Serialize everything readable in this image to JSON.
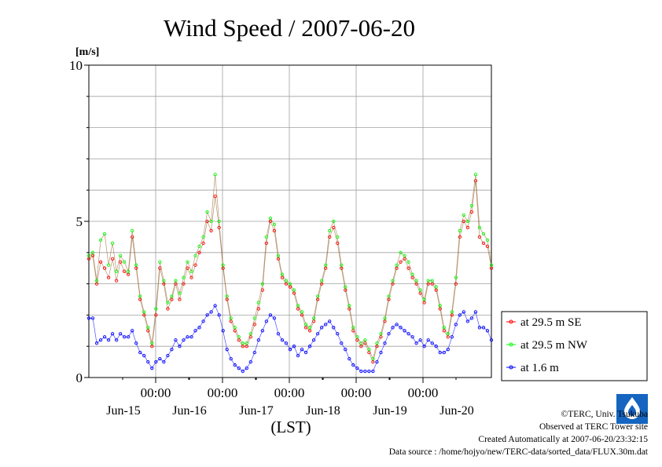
{
  "chart_data": {
    "type": "line",
    "title": "Wind Speed / 2007-06-20",
    "ylabel": "[m/s]",
    "xlabel": "(LST)",
    "ylim": [
      0,
      10
    ],
    "yticks": [
      "0",
      "5",
      "10"
    ],
    "x_ticks_time": [
      "00:00",
      "00:00",
      "00:00",
      "00:00",
      "00:00"
    ],
    "x_ticks_date": [
      "Jun-15",
      "Jun-16",
      "Jun-17",
      "Jun-18",
      "Jun-19",
      "Jun-20"
    ],
    "legend_position": "right",
    "grid": true,
    "series": [
      {
        "name": "at 29.5 m SE",
        "color": "#ff0000",
        "keypoints": [
          [
            0,
            3.8
          ],
          [
            2,
            3.9
          ],
          [
            4,
            3.0
          ],
          [
            6,
            3.7
          ],
          [
            8,
            3.5
          ],
          [
            10,
            3.2
          ],
          [
            12,
            3.8
          ],
          [
            14,
            3.1
          ],
          [
            16,
            3.7
          ],
          [
            18,
            3.4
          ],
          [
            20,
            3.3
          ],
          [
            22,
            4.5
          ],
          [
            24,
            3.5
          ],
          [
            26,
            2.5
          ],
          [
            28,
            2.0
          ],
          [
            30,
            1.5
          ],
          [
            32,
            1.0
          ],
          [
            34,
            2.0
          ],
          [
            36,
            3.5
          ],
          [
            38,
            3.0
          ],
          [
            40,
            2.2
          ],
          [
            42,
            2.5
          ],
          [
            44,
            3.0
          ],
          [
            46,
            2.5
          ],
          [
            48,
            3.0
          ],
          [
            50,
            3.5
          ],
          [
            52,
            3.2
          ],
          [
            54,
            3.6
          ],
          [
            56,
            4.0
          ],
          [
            58,
            4.3
          ],
          [
            60,
            5.0
          ],
          [
            62,
            4.7
          ],
          [
            64,
            5.8
          ],
          [
            66,
            4.8
          ],
          [
            68,
            3.5
          ],
          [
            70,
            2.5
          ],
          [
            72,
            1.8
          ],
          [
            74,
            1.5
          ],
          [
            76,
            1.2
          ],
          [
            78,
            1.0
          ],
          [
            80,
            1.0
          ],
          [
            82,
            1.3
          ],
          [
            84,
            1.7
          ],
          [
            86,
            2.2
          ],
          [
            88,
            2.8
          ],
          [
            90,
            4.3
          ],
          [
            92,
            5.0
          ],
          [
            94,
            4.7
          ],
          [
            96,
            3.8
          ],
          [
            98,
            3.2
          ],
          [
            100,
            3.0
          ],
          [
            102,
            2.9
          ],
          [
            104,
            2.7
          ],
          [
            106,
            2.2
          ],
          [
            108,
            2.0
          ],
          [
            110,
            1.6
          ],
          [
            112,
            1.5
          ],
          [
            114,
            1.8
          ],
          [
            116,
            2.5
          ],
          [
            118,
            3.0
          ],
          [
            120,
            3.5
          ],
          [
            122,
            4.5
          ],
          [
            124,
            4.8
          ],
          [
            126,
            4.3
          ],
          [
            128,
            3.5
          ],
          [
            130,
            2.8
          ],
          [
            132,
            2.2
          ],
          [
            134,
            1.5
          ],
          [
            136,
            1.2
          ],
          [
            138,
            1.0
          ],
          [
            140,
            1.1
          ],
          [
            142,
            0.8
          ],
          [
            144,
            0.5
          ],
          [
            146,
            1.0
          ],
          [
            148,
            1.3
          ],
          [
            150,
            1.8
          ],
          [
            152,
            2.5
          ],
          [
            154,
            3.0
          ],
          [
            156,
            3.5
          ],
          [
            158,
            3.7
          ],
          [
            160,
            3.8
          ],
          [
            162,
            3.5
          ],
          [
            164,
            3.2
          ],
          [
            166,
            3.0
          ],
          [
            168,
            2.7
          ],
          [
            170,
            2.4
          ],
          [
            172,
            3.0
          ],
          [
            174,
            3.0
          ],
          [
            176,
            2.8
          ],
          [
            178,
            2.2
          ],
          [
            180,
            1.5
          ],
          [
            182,
            1.3
          ],
          [
            184,
            2.0
          ],
          [
            186,
            3.0
          ],
          [
            188,
            4.5
          ],
          [
            190,
            5.0
          ],
          [
            192,
            4.8
          ],
          [
            194,
            5.3
          ],
          [
            196,
            6.3
          ],
          [
            198,
            4.5
          ],
          [
            200,
            4.3
          ],
          [
            202,
            4.2
          ],
          [
            204,
            3.5
          ]
        ]
      },
      {
        "name": "at 29.5 m NW",
        "color": "#00ff00",
        "keypoints": [
          [
            0,
            3.9
          ],
          [
            2,
            4.0
          ],
          [
            4,
            3.1
          ],
          [
            6,
            4.4
          ],
          [
            8,
            4.6
          ],
          [
            10,
            3.6
          ],
          [
            12,
            4.3
          ],
          [
            14,
            3.4
          ],
          [
            16,
            3.9
          ],
          [
            18,
            3.7
          ],
          [
            20,
            3.4
          ],
          [
            22,
            4.7
          ],
          [
            24,
            3.6
          ],
          [
            26,
            2.6
          ],
          [
            28,
            2.1
          ],
          [
            30,
            1.6
          ],
          [
            32,
            1.1
          ],
          [
            34,
            2.2
          ],
          [
            36,
            3.7
          ],
          [
            38,
            3.1
          ],
          [
            40,
            2.4
          ],
          [
            42,
            2.6
          ],
          [
            44,
            3.1
          ],
          [
            46,
            2.7
          ],
          [
            48,
            3.2
          ],
          [
            50,
            3.7
          ],
          [
            52,
            3.4
          ],
          [
            54,
            3.9
          ],
          [
            56,
            4.2
          ],
          [
            58,
            4.5
          ],
          [
            60,
            5.3
          ],
          [
            62,
            5.0
          ],
          [
            64,
            6.5
          ],
          [
            66,
            5.0
          ],
          [
            68,
            3.6
          ],
          [
            70,
            2.6
          ],
          [
            72,
            1.9
          ],
          [
            74,
            1.6
          ],
          [
            76,
            1.3
          ],
          [
            78,
            1.1
          ],
          [
            80,
            1.1
          ],
          [
            82,
            1.4
          ],
          [
            84,
            1.9
          ],
          [
            86,
            2.4
          ],
          [
            88,
            3.0
          ],
          [
            90,
            4.5
          ],
          [
            92,
            5.1
          ],
          [
            94,
            4.9
          ],
          [
            96,
            3.9
          ],
          [
            98,
            3.3
          ],
          [
            100,
            3.1
          ],
          [
            102,
            3.0
          ],
          [
            104,
            2.8
          ],
          [
            106,
            2.3
          ],
          [
            108,
            2.1
          ],
          [
            110,
            1.7
          ],
          [
            112,
            1.6
          ],
          [
            114,
            1.9
          ],
          [
            116,
            2.6
          ],
          [
            118,
            3.1
          ],
          [
            120,
            3.6
          ],
          [
            122,
            4.7
          ],
          [
            124,
            5.0
          ],
          [
            126,
            4.5
          ],
          [
            128,
            3.6
          ],
          [
            130,
            2.9
          ],
          [
            132,
            2.3
          ],
          [
            134,
            1.6
          ],
          [
            136,
            1.3
          ],
          [
            138,
            1.1
          ],
          [
            140,
            1.2
          ],
          [
            142,
            0.9
          ],
          [
            144,
            0.6
          ],
          [
            146,
            1.1
          ],
          [
            148,
            1.4
          ],
          [
            150,
            1.9
          ],
          [
            152,
            2.6
          ],
          [
            154,
            3.1
          ],
          [
            156,
            3.6
          ],
          [
            158,
            4.0
          ],
          [
            160,
            3.9
          ],
          [
            162,
            3.7
          ],
          [
            164,
            3.3
          ],
          [
            166,
            3.1
          ],
          [
            168,
            2.8
          ],
          [
            170,
            2.5
          ],
          [
            172,
            3.1
          ],
          [
            174,
            3.1
          ],
          [
            176,
            2.9
          ],
          [
            178,
            2.3
          ],
          [
            180,
            1.6
          ],
          [
            182,
            1.4
          ],
          [
            184,
            2.1
          ],
          [
            186,
            3.2
          ],
          [
            188,
            4.7
          ],
          [
            190,
            5.2
          ],
          [
            192,
            5.0
          ],
          [
            194,
            5.5
          ],
          [
            196,
            6.5
          ],
          [
            198,
            4.8
          ],
          [
            200,
            4.6
          ],
          [
            202,
            4.4
          ],
          [
            204,
            3.6
          ]
        ]
      },
      {
        "name": "at 1.6 m",
        "color": "#0000ff",
        "keypoints": [
          [
            0,
            1.9
          ],
          [
            2,
            1.9
          ],
          [
            4,
            1.1
          ],
          [
            6,
            1.2
          ],
          [
            8,
            1.3
          ],
          [
            10,
            1.2
          ],
          [
            12,
            1.4
          ],
          [
            14,
            1.2
          ],
          [
            16,
            1.4
          ],
          [
            18,
            1.3
          ],
          [
            20,
            1.3
          ],
          [
            22,
            1.5
          ],
          [
            24,
            1.1
          ],
          [
            26,
            0.8
          ],
          [
            28,
            0.7
          ],
          [
            30,
            0.5
          ],
          [
            32,
            0.3
          ],
          [
            34,
            0.5
          ],
          [
            36,
            0.6
          ],
          [
            38,
            0.5
          ],
          [
            40,
            0.7
          ],
          [
            42,
            0.9
          ],
          [
            44,
            1.2
          ],
          [
            46,
            1.0
          ],
          [
            48,
            1.2
          ],
          [
            50,
            1.3
          ],
          [
            52,
            1.3
          ],
          [
            54,
            1.5
          ],
          [
            56,
            1.6
          ],
          [
            58,
            1.8
          ],
          [
            60,
            2.0
          ],
          [
            62,
            2.1
          ],
          [
            64,
            2.3
          ],
          [
            66,
            2.0
          ],
          [
            68,
            1.5
          ],
          [
            70,
            0.9
          ],
          [
            72,
            0.6
          ],
          [
            74,
            0.4
          ],
          [
            76,
            0.3
          ],
          [
            78,
            0.2
          ],
          [
            80,
            0.3
          ],
          [
            82,
            0.5
          ],
          [
            84,
            0.8
          ],
          [
            86,
            1.2
          ],
          [
            88,
            1.5
          ],
          [
            90,
            1.8
          ],
          [
            92,
            2.0
          ],
          [
            94,
            1.9
          ],
          [
            96,
            1.4
          ],
          [
            98,
            1.2
          ],
          [
            100,
            1.1
          ],
          [
            102,
            0.9
          ],
          [
            104,
            1.0
          ],
          [
            106,
            0.7
          ],
          [
            108,
            0.9
          ],
          [
            110,
            0.8
          ],
          [
            112,
            1.0
          ],
          [
            114,
            1.2
          ],
          [
            116,
            1.4
          ],
          [
            118,
            1.6
          ],
          [
            120,
            1.7
          ],
          [
            122,
            1.8
          ],
          [
            124,
            1.6
          ],
          [
            126,
            1.4
          ],
          [
            128,
            1.1
          ],
          [
            130,
            0.9
          ],
          [
            132,
            0.6
          ],
          [
            134,
            0.4
          ],
          [
            136,
            0.3
          ],
          [
            138,
            0.2
          ],
          [
            140,
            0.2
          ],
          [
            142,
            0.2
          ],
          [
            144,
            0.2
          ],
          [
            146,
            0.5
          ],
          [
            148,
            0.8
          ],
          [
            150,
            1.1
          ],
          [
            152,
            1.4
          ],
          [
            154,
            1.6
          ],
          [
            156,
            1.7
          ],
          [
            158,
            1.6
          ],
          [
            160,
            1.5
          ],
          [
            162,
            1.4
          ],
          [
            164,
            1.3
          ],
          [
            166,
            1.1
          ],
          [
            168,
            1.2
          ],
          [
            170,
            1.0
          ],
          [
            172,
            1.2
          ],
          [
            174,
            1.1
          ],
          [
            176,
            1.0
          ],
          [
            178,
            0.8
          ],
          [
            180,
            0.8
          ],
          [
            182,
            0.9
          ],
          [
            184,
            1.3
          ],
          [
            186,
            1.7
          ],
          [
            188,
            2.0
          ],
          [
            190,
            2.1
          ],
          [
            192,
            1.8
          ],
          [
            194,
            1.9
          ],
          [
            196,
            2.1
          ],
          [
            198,
            1.6
          ],
          [
            200,
            1.6
          ],
          [
            202,
            1.5
          ],
          [
            204,
            1.2
          ]
        ]
      }
    ]
  },
  "footer": {
    "copyright": "©TERC, Univ. Tsukuba",
    "observed": "Observed at TERC Tower site",
    "created": "Created Automatically at 2007-06-20/23:32:15",
    "source": "Data source : /home/hojyo/new/TERC-data/sorted_data/FLUX.30m.dat"
  },
  "logo": {
    "text": "TERC",
    "color": "#1565c0"
  }
}
